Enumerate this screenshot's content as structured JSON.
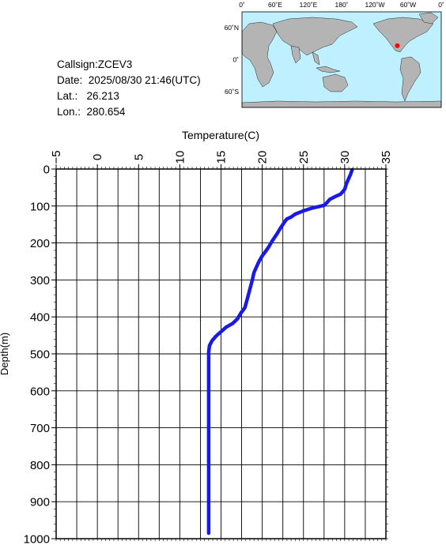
{
  "info": {
    "callsign": "Callsign:ZCEV3",
    "date_label": "Date:",
    "date_value": "2025/08/30 21:46(UTC)",
    "lat_label": "Lat.:",
    "lat_value": "26.213",
    "lon_label": "Lon.:",
    "lon_value": "280.654"
  },
  "map": {
    "lon_ticks": [
      "0˚",
      "60˚E",
      "120˚E",
      "180˚",
      "120˚W",
      "60˚W",
      "0˚"
    ],
    "lat_ticks": [
      "60˚N",
      "0˚",
      "60˚S"
    ],
    "marker": {
      "lat": 26.213,
      "lon": 280.654
    },
    "colors": {
      "ocean": "#bff0ff",
      "land": "#b4b4b4",
      "marker": "#ff0000"
    }
  },
  "chart_data": {
    "type": "line",
    "xlabel": "Temperature(C)",
    "ylabel": "Depth(m)",
    "xlim": [
      -5,
      35
    ],
    "ylim": [
      0,
      1000
    ],
    "y_inverted": true,
    "x_ticks": [
      "-5",
      "0",
      "5",
      "10",
      "15",
      "20",
      "25",
      "30",
      "35"
    ],
    "y_ticks": [
      "0",
      "100",
      "200",
      "300",
      "400",
      "500",
      "600",
      "700",
      "800",
      "900",
      "1000"
    ],
    "grid": true,
    "line_color": "#1a1ae6",
    "series": [
      {
        "points": [
          [
            30.9,
            2
          ],
          [
            30.7,
            15
          ],
          [
            30.5,
            25
          ],
          [
            30.2,
            40
          ],
          [
            30.0,
            55
          ],
          [
            29.5,
            68
          ],
          [
            28.8,
            75
          ],
          [
            28.2,
            82
          ],
          [
            27.8,
            92
          ],
          [
            27.5,
            98
          ],
          [
            26.8,
            102
          ],
          [
            26.0,
            106
          ],
          [
            25.0,
            113
          ],
          [
            24.0,
            122
          ],
          [
            23.5,
            130
          ],
          [
            23.0,
            135
          ],
          [
            22.8,
            140
          ],
          [
            22.5,
            150
          ],
          [
            22.2,
            160
          ],
          [
            21.8,
            175
          ],
          [
            21.2,
            195
          ],
          [
            20.8,
            210
          ],
          [
            20.5,
            220
          ],
          [
            20.0,
            235
          ],
          [
            19.6,
            250
          ],
          [
            19.3,
            265
          ],
          [
            19.0,
            280
          ],
          [
            18.8,
            300
          ],
          [
            18.5,
            325
          ],
          [
            18.2,
            350
          ],
          [
            17.9,
            375
          ],
          [
            17.4,
            390
          ],
          [
            17.0,
            405
          ],
          [
            16.4,
            418
          ],
          [
            15.6,
            428
          ],
          [
            15.0,
            440
          ],
          [
            14.4,
            452
          ],
          [
            13.9,
            465
          ],
          [
            13.6,
            478
          ],
          [
            13.5,
            495
          ],
          [
            13.5,
            550
          ],
          [
            13.5,
            650
          ],
          [
            13.5,
            750
          ],
          [
            13.5,
            850
          ],
          [
            13.5,
            950
          ],
          [
            13.5,
            985
          ]
        ]
      }
    ]
  }
}
